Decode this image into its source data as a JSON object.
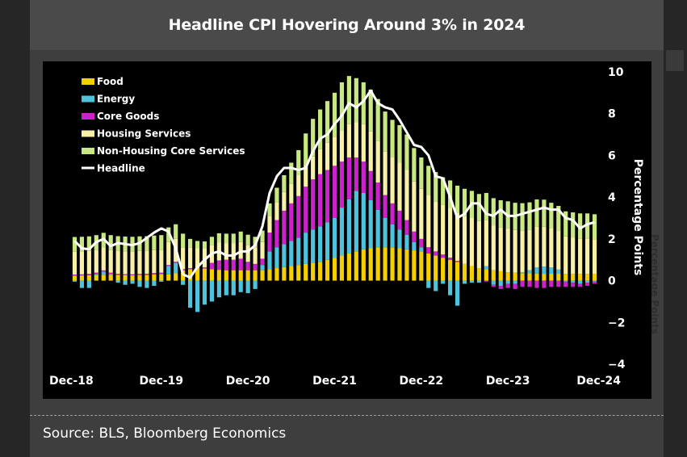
{
  "title": "Headline CPI Hovering Around 3% in 2024",
  "source": "Source: BLS, Bloomberg Economics",
  "side_label": "Percentage Points",
  "chart_data": {
    "type": "bar",
    "stacked": true,
    "title": "Headline CPI Hovering Around 3% in 2024",
    "ylabel": "Percentage Points",
    "ylim": [
      -4,
      10
    ],
    "yticks": [
      10,
      8,
      6,
      4,
      2,
      0,
      -2,
      -4
    ],
    "x_tick_labels": [
      "Dec-18",
      "Dec-19",
      "Dec-20",
      "Dec-21",
      "Dec-22",
      "Dec-23",
      "Dec-24"
    ],
    "x_tick_indices": [
      0,
      12,
      24,
      36,
      48,
      60,
      72
    ],
    "colors": {
      "food": "#f5d000",
      "energy": "#4fc3dd",
      "core_goods": "#cc22cc",
      "housing": "#f7f0a6",
      "non_housing": "#c8e882",
      "headline": "#ffffff"
    },
    "series": [
      {
        "key": "food",
        "name": "Food",
        "values": [
          0.24,
          0.25,
          0.26,
          0.27,
          0.28,
          0.28,
          0.28,
          0.27,
          0.26,
          0.27,
          0.28,
          0.3,
          0.32,
          0.3,
          0.35,
          0.5,
          0.55,
          0.6,
          0.58,
          0.55,
          0.52,
          0.5,
          0.5,
          0.5,
          0.5,
          0.5,
          0.5,
          0.55,
          0.6,
          0.65,
          0.7,
          0.75,
          0.8,
          0.85,
          0.9,
          1.0,
          1.1,
          1.2,
          1.3,
          1.4,
          1.5,
          1.55,
          1.6,
          1.6,
          1.6,
          1.55,
          1.5,
          1.45,
          1.4,
          1.3,
          1.2,
          1.1,
          1.0,
          0.9,
          0.8,
          0.7,
          0.6,
          0.55,
          0.5,
          0.45,
          0.4,
          0.38,
          0.36,
          0.35,
          0.34,
          0.33,
          0.33,
          0.33,
          0.32,
          0.32,
          0.32,
          0.32,
          0.33
        ]
      },
      {
        "key": "energy",
        "name": "Energy",
        "values": [
          -0.05,
          -0.35,
          -0.35,
          0.05,
          0.15,
          0.05,
          -0.1,
          -0.2,
          -0.15,
          -0.3,
          -0.35,
          -0.25,
          -0.05,
          0.4,
          0.5,
          -0.2,
          -1.3,
          -1.5,
          -1.15,
          -1.0,
          -0.8,
          -0.7,
          -0.7,
          -0.55,
          -0.6,
          -0.4,
          0.25,
          0.85,
          1.0,
          1.1,
          1.2,
          1.3,
          1.5,
          1.6,
          1.7,
          1.8,
          1.9,
          2.3,
          2.6,
          2.9,
          2.7,
          2.3,
          1.8,
          1.4,
          1.1,
          0.9,
          0.7,
          0.4,
          0.2,
          -0.35,
          -0.5,
          -0.15,
          -0.7,
          -1.2,
          -0.15,
          -0.1,
          -0.1,
          0.15,
          -0.2,
          -0.25,
          -0.15,
          -0.15,
          0.05,
          0.15,
          0.3,
          0.35,
          0.3,
          0.2,
          -0.05,
          -0.1,
          -0.15,
          -0.1,
          -0.05
        ]
      },
      {
        "key": "core_goods",
        "name": "Core Goods",
        "values": [
          0.05,
          0.05,
          0.06,
          0.06,
          0.06,
          0.05,
          0.05,
          0.04,
          0.04,
          0.05,
          0.05,
          0.06,
          0.06,
          0.05,
          0.05,
          0.05,
          0.05,
          0.0,
          0.05,
          0.3,
          0.45,
          0.5,
          0.5,
          0.55,
          0.4,
          0.3,
          0.3,
          0.9,
          1.3,
          1.6,
          1.8,
          2.0,
          2.2,
          2.4,
          2.5,
          2.5,
          2.5,
          2.2,
          2.0,
          1.6,
          1.5,
          1.4,
          1.3,
          1.1,
          1.0,
          0.9,
          0.7,
          0.5,
          0.4,
          0.3,
          0.2,
          0.15,
          0.1,
          0.05,
          0.0,
          0.0,
          0.0,
          -0.05,
          -0.1,
          -0.15,
          -0.2,
          -0.25,
          -0.3,
          -0.3,
          -0.35,
          -0.35,
          -0.3,
          -0.3,
          -0.25,
          -0.2,
          -0.15,
          -0.15,
          -0.1
        ]
      },
      {
        "key": "housing",
        "name": "Housing Services",
        "values": [
          1.1,
          1.1,
          1.1,
          1.1,
          1.1,
          1.1,
          1.1,
          1.1,
          1.1,
          1.1,
          1.1,
          1.1,
          1.1,
          1.1,
          1.1,
          1.05,
          1.0,
          0.95,
          0.9,
          0.85,
          0.85,
          0.8,
          0.8,
          0.8,
          0.8,
          0.8,
          0.8,
          0.8,
          0.85,
          0.9,
          0.95,
          1.0,
          1.05,
          1.1,
          1.2,
          1.3,
          1.4,
          1.5,
          1.6,
          1.7,
          1.8,
          1.9,
          2.0,
          2.1,
          2.2,
          2.3,
          2.4,
          2.4,
          2.4,
          2.5,
          2.4,
          2.4,
          2.4,
          2.3,
          2.3,
          2.3,
          2.25,
          2.2,
          2.15,
          2.1,
          2.1,
          2.05,
          2.0,
          1.95,
          1.95,
          1.9,
          1.9,
          1.85,
          1.8,
          1.75,
          1.7,
          1.7,
          1.65
        ]
      },
      {
        "key": "non_housing",
        "name": "Non-Housing Core Services",
        "values": [
          0.7,
          0.7,
          0.7,
          0.7,
          0.7,
          0.7,
          0.7,
          0.7,
          0.7,
          0.7,
          0.7,
          0.7,
          0.7,
          0.7,
          0.7,
          0.65,
          0.4,
          0.35,
          0.35,
          0.4,
          0.45,
          0.45,
          0.45,
          0.5,
          0.5,
          0.5,
          0.55,
          0.6,
          0.7,
          0.8,
          1.0,
          1.2,
          1.5,
          1.8,
          1.9,
          2.0,
          2.1,
          2.3,
          2.3,
          2.1,
          2.0,
          2.0,
          2.0,
          1.9,
          1.8,
          1.8,
          1.7,
          1.6,
          1.5,
          1.4,
          1.4,
          1.3,
          1.3,
          1.3,
          1.3,
          1.3,
          1.3,
          1.3,
          1.3,
          1.3,
          1.3,
          1.3,
          1.3,
          1.3,
          1.3,
          1.3,
          1.2,
          1.2,
          1.2,
          1.2,
          1.2,
          1.2,
          1.2
        ]
      },
      {
        "key": "headline",
        "name": "Headline",
        "type": "line",
        "values": [
          1.9,
          1.55,
          1.5,
          1.85,
          2.0,
          1.65,
          1.8,
          1.75,
          1.7,
          1.8,
          2.05,
          2.3,
          2.5,
          2.35,
          1.55,
          0.3,
          0.15,
          0.65,
          1.0,
          1.3,
          1.4,
          1.2,
          1.2,
          1.4,
          1.4,
          1.7,
          2.6,
          4.2,
          5.0,
          5.4,
          5.4,
          5.3,
          5.4,
          6.2,
          6.8,
          7.0,
          7.5,
          7.9,
          8.5,
          8.3,
          8.6,
          9.1,
          8.5,
          8.3,
          8.2,
          7.7,
          7.1,
          6.5,
          6.4,
          6.0,
          5.0,
          4.9,
          4.0,
          3.0,
          3.2,
          3.7,
          3.7,
          3.2,
          3.1,
          3.4,
          3.1,
          3.1,
          3.2,
          3.3,
          3.4,
          3.5,
          3.4,
          3.4,
          3.0,
          2.9,
          2.5,
          2.7,
          2.8
        ]
      }
    ]
  }
}
